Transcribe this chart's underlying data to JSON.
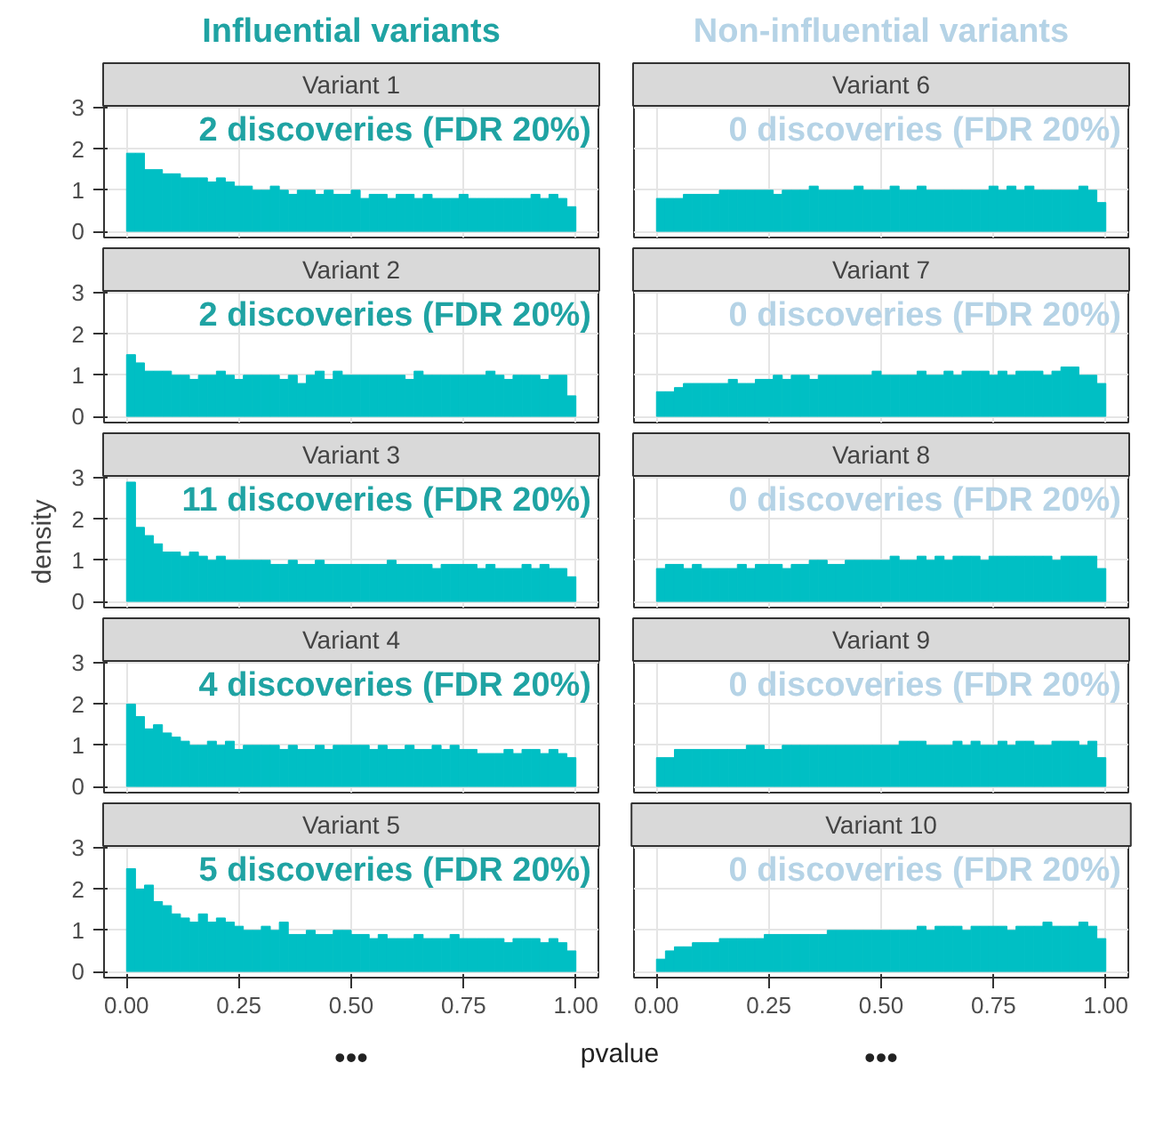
{
  "chart_data": [
    {
      "type": "histogram",
      "subtitle": "Influential variants",
      "title": "Variant 1",
      "annotations": [
        "2 discoveries (FDR 20%)"
      ],
      "color": "#00bfc4",
      "bins": [
        0,
        0.02,
        0.04,
        0.06,
        0.08,
        0.1,
        0.12,
        0.14,
        0.16,
        0.18,
        0.2,
        0.22,
        0.24,
        0.26,
        0.28,
        0.3,
        0.32,
        0.34,
        0.36,
        0.38,
        0.4,
        0.42,
        0.44,
        0.46,
        0.48,
        0.5,
        0.52,
        0.54,
        0.56,
        0.58,
        0.6,
        0.62,
        0.64,
        0.66,
        0.68,
        0.7,
        0.72,
        0.74,
        0.76,
        0.78,
        0.8,
        0.82,
        0.84,
        0.86,
        0.88,
        0.9,
        0.92,
        0.94,
        0.96,
        0.98,
        1
      ],
      "values": [
        1.9,
        1.9,
        1.5,
        1.5,
        1.4,
        1.4,
        1.3,
        1.3,
        1.3,
        1.2,
        1.3,
        1.2,
        1.1,
        1.1,
        1.0,
        1.0,
        1.1,
        1.0,
        0.9,
        1.0,
        1.0,
        0.9,
        1.0,
        0.9,
        0.9,
        1.0,
        0.8,
        0.9,
        0.9,
        0.8,
        0.9,
        0.9,
        0.8,
        0.9,
        0.8,
        0.8,
        0.8,
        0.9,
        0.8,
        0.8,
        0.8,
        0.8,
        0.8,
        0.8,
        0.8,
        0.9,
        0.8,
        0.9,
        0.8,
        0.6
      ],
      "xlim": [
        -0.05,
        1.05
      ],
      "ylim": [
        -0.15,
        3.05
      ],
      "xticks": [
        0,
        0.25,
        0.5,
        0.75,
        1
      ],
      "yticks": [
        0,
        1,
        2,
        3
      ],
      "grid": true,
      "tick_labels": "y"
    },
    {
      "type": "histogram",
      "subtitle": "Non-influential variants",
      "title": "Variant 6",
      "annotations": [
        "0 discoveries (FDR 20%)"
      ],
      "color": "#00bfc4",
      "bins": [
        0,
        0.02,
        0.04,
        0.06,
        0.08,
        0.1,
        0.12,
        0.14,
        0.16,
        0.18,
        0.2,
        0.22,
        0.24,
        0.26,
        0.28,
        0.3,
        0.32,
        0.34,
        0.36,
        0.38,
        0.4,
        0.42,
        0.44,
        0.46,
        0.48,
        0.5,
        0.52,
        0.54,
        0.56,
        0.58,
        0.6,
        0.62,
        0.64,
        0.66,
        0.68,
        0.7,
        0.72,
        0.74,
        0.76,
        0.78,
        0.8,
        0.82,
        0.84,
        0.86,
        0.88,
        0.9,
        0.92,
        0.94,
        0.96,
        0.98,
        1
      ],
      "values": [
        0.8,
        0.8,
        0.8,
        0.9,
        0.9,
        0.9,
        0.9,
        1.0,
        1.0,
        1.0,
        1.0,
        1.0,
        1.0,
        0.9,
        1.0,
        1.0,
        1.0,
        1.1,
        1.0,
        1.0,
        1.0,
        1.0,
        1.1,
        1.0,
        1.0,
        1.0,
        1.1,
        1.0,
        1.0,
        1.1,
        1.0,
        1.0,
        1.0,
        1.0,
        1.0,
        1.0,
        1.0,
        1.1,
        1.0,
        1.1,
        1.0,
        1.1,
        1.0,
        1.0,
        1.0,
        1.0,
        1.0,
        1.1,
        1.0,
        0.7
      ],
      "xlim": [
        -0.05,
        1.05
      ],
      "ylim": [
        -0.15,
        3.05
      ],
      "xticks": [
        0,
        0.25,
        0.5,
        0.75,
        1
      ],
      "yticks": [
        0,
        1,
        2,
        3
      ],
      "grid": true,
      "tick_labels": false
    },
    {
      "type": "histogram",
      "title": "Variant 2",
      "annotations": [
        "2 discoveries (FDR 20%)"
      ],
      "color": "#00bfc4",
      "bins": [
        0,
        0.02,
        0.04,
        0.06,
        0.08,
        0.1,
        0.12,
        0.14,
        0.16,
        0.18,
        0.2,
        0.22,
        0.24,
        0.26,
        0.28,
        0.3,
        0.32,
        0.34,
        0.36,
        0.38,
        0.4,
        0.42,
        0.44,
        0.46,
        0.48,
        0.5,
        0.52,
        0.54,
        0.56,
        0.58,
        0.6,
        0.62,
        0.64,
        0.66,
        0.68,
        0.7,
        0.72,
        0.74,
        0.76,
        0.78,
        0.8,
        0.82,
        0.84,
        0.86,
        0.88,
        0.9,
        0.92,
        0.94,
        0.96,
        0.98,
        1
      ],
      "values": [
        1.5,
        1.3,
        1.1,
        1.1,
        1.1,
        1.0,
        1.0,
        0.9,
        1.0,
        1.0,
        1.1,
        1.0,
        0.9,
        1.0,
        1.0,
        1.0,
        1.0,
        0.9,
        1.0,
        0.8,
        1.0,
        1.1,
        0.9,
        1.1,
        1.0,
        1.0,
        1.0,
        1.0,
        1.0,
        1.0,
        1.0,
        0.9,
        1.1,
        1.0,
        1.0,
        1.0,
        1.0,
        1.0,
        1.0,
        1.0,
        1.1,
        1.0,
        0.9,
        1.0,
        1.0,
        1.0,
        0.9,
        1.0,
        1.0,
        0.5
      ],
      "xlim": [
        -0.05,
        1.05
      ],
      "ylim": [
        -0.15,
        3.05
      ],
      "xticks": [
        0,
        0.25,
        0.5,
        0.75,
        1
      ],
      "yticks": [
        0,
        1,
        2,
        3
      ],
      "grid": true,
      "tick_labels": "y"
    },
    {
      "type": "histogram",
      "title": "Variant 7",
      "annotations": [
        "0 discoveries (FDR 20%)"
      ],
      "color": "#00bfc4",
      "bins": [
        0,
        0.02,
        0.04,
        0.06,
        0.08,
        0.1,
        0.12,
        0.14,
        0.16,
        0.18,
        0.2,
        0.22,
        0.24,
        0.26,
        0.28,
        0.3,
        0.32,
        0.34,
        0.36,
        0.38,
        0.4,
        0.42,
        0.44,
        0.46,
        0.48,
        0.5,
        0.52,
        0.54,
        0.56,
        0.58,
        0.6,
        0.62,
        0.64,
        0.66,
        0.68,
        0.7,
        0.72,
        0.74,
        0.76,
        0.78,
        0.8,
        0.82,
        0.84,
        0.86,
        0.88,
        0.9,
        0.92,
        0.94,
        0.96,
        0.98,
        1
      ],
      "values": [
        0.6,
        0.6,
        0.7,
        0.8,
        0.8,
        0.8,
        0.8,
        0.8,
        0.9,
        0.8,
        0.8,
        0.9,
        0.9,
        1.0,
        0.9,
        1.0,
        1.0,
        0.9,
        1.0,
        1.0,
        1.0,
        1.0,
        1.0,
        1.0,
        1.1,
        1.0,
        1.0,
        1.0,
        1.0,
        1.1,
        1.0,
        1.0,
        1.1,
        1.0,
        1.1,
        1.1,
        1.1,
        1.0,
        1.1,
        1.0,
        1.1,
        1.1,
        1.1,
        1.0,
        1.1,
        1.2,
        1.2,
        1.0,
        1.0,
        0.8
      ],
      "xlim": [
        -0.05,
        1.05
      ],
      "ylim": [
        -0.15,
        3.05
      ],
      "xticks": [
        0,
        0.25,
        0.5,
        0.75,
        1
      ],
      "yticks": [
        0,
        1,
        2,
        3
      ],
      "grid": true,
      "tick_labels": false
    },
    {
      "type": "histogram",
      "title": "Variant 3",
      "ylabel": "density",
      "annotations": [
        "11 discoveries (FDR 20%)"
      ],
      "color": "#00bfc4",
      "bins": [
        0,
        0.02,
        0.04,
        0.06,
        0.08,
        0.1,
        0.12,
        0.14,
        0.16,
        0.18,
        0.2,
        0.22,
        0.24,
        0.26,
        0.28,
        0.3,
        0.32,
        0.34,
        0.36,
        0.38,
        0.4,
        0.42,
        0.44,
        0.46,
        0.48,
        0.5,
        0.52,
        0.54,
        0.56,
        0.58,
        0.6,
        0.62,
        0.64,
        0.66,
        0.68,
        0.7,
        0.72,
        0.74,
        0.76,
        0.78,
        0.8,
        0.82,
        0.84,
        0.86,
        0.88,
        0.9,
        0.92,
        0.94,
        0.96,
        0.98,
        1
      ],
      "values": [
        2.9,
        1.8,
        1.6,
        1.4,
        1.2,
        1.2,
        1.1,
        1.2,
        1.1,
        1.0,
        1.1,
        1.0,
        1.0,
        1.0,
        1.0,
        1.0,
        0.9,
        0.9,
        1.0,
        0.9,
        0.9,
        1.0,
        0.9,
        0.9,
        0.9,
        0.9,
        0.9,
        0.9,
        0.9,
        1.0,
        0.9,
        0.9,
        0.9,
        0.9,
        0.8,
        0.9,
        0.9,
        0.9,
        0.9,
        0.8,
        0.9,
        0.8,
        0.8,
        0.8,
        0.9,
        0.8,
        0.9,
        0.8,
        0.8,
        0.6
      ],
      "xlim": [
        -0.05,
        1.05
      ],
      "ylim": [
        -0.15,
        3.05
      ],
      "xticks": [
        0,
        0.25,
        0.5,
        0.75,
        1
      ],
      "yticks": [
        0,
        1,
        2,
        3
      ],
      "grid": true,
      "tick_labels": "y"
    },
    {
      "type": "histogram",
      "title": "Variant 8",
      "annotations": [
        "0 discoveries (FDR 20%)"
      ],
      "color": "#00bfc4",
      "bins": [
        0,
        0.02,
        0.04,
        0.06,
        0.08,
        0.1,
        0.12,
        0.14,
        0.16,
        0.18,
        0.2,
        0.22,
        0.24,
        0.26,
        0.28,
        0.3,
        0.32,
        0.34,
        0.36,
        0.38,
        0.4,
        0.42,
        0.44,
        0.46,
        0.48,
        0.5,
        0.52,
        0.54,
        0.56,
        0.58,
        0.6,
        0.62,
        0.64,
        0.66,
        0.68,
        0.7,
        0.72,
        0.74,
        0.76,
        0.78,
        0.8,
        0.82,
        0.84,
        0.86,
        0.88,
        0.9,
        0.92,
        0.94,
        0.96,
        0.98,
        1
      ],
      "values": [
        0.8,
        0.9,
        0.9,
        0.8,
        0.9,
        0.8,
        0.8,
        0.8,
        0.8,
        0.9,
        0.8,
        0.9,
        0.9,
        0.9,
        0.8,
        0.9,
        0.9,
        1.0,
        1.0,
        0.9,
        0.9,
        1.0,
        1.0,
        1.0,
        1.0,
        1.0,
        1.1,
        1.0,
        1.0,
        1.1,
        1.0,
        1.1,
        1.0,
        1.1,
        1.1,
        1.1,
        1.0,
        1.1,
        1.1,
        1.1,
        1.1,
        1.1,
        1.1,
        1.1,
        1.0,
        1.1,
        1.1,
        1.1,
        1.1,
        0.8
      ],
      "xlim": [
        -0.05,
        1.05
      ],
      "ylim": [
        -0.15,
        3.05
      ],
      "xticks": [
        0,
        0.25,
        0.5,
        0.75,
        1
      ],
      "yticks": [
        0,
        1,
        2,
        3
      ],
      "grid": true,
      "tick_labels": false
    },
    {
      "type": "histogram",
      "title": "Variant 4",
      "annotations": [
        "4 discoveries (FDR 20%)"
      ],
      "color": "#00bfc4",
      "bins": [
        0,
        0.02,
        0.04,
        0.06,
        0.08,
        0.1,
        0.12,
        0.14,
        0.16,
        0.18,
        0.2,
        0.22,
        0.24,
        0.26,
        0.28,
        0.3,
        0.32,
        0.34,
        0.36,
        0.38,
        0.4,
        0.42,
        0.44,
        0.46,
        0.48,
        0.5,
        0.52,
        0.54,
        0.56,
        0.58,
        0.6,
        0.62,
        0.64,
        0.66,
        0.68,
        0.7,
        0.72,
        0.74,
        0.76,
        0.78,
        0.8,
        0.82,
        0.84,
        0.86,
        0.88,
        0.9,
        0.92,
        0.94,
        0.96,
        0.98,
        1
      ],
      "values": [
        2.0,
        1.7,
        1.4,
        1.5,
        1.3,
        1.2,
        1.1,
        1.0,
        1.0,
        1.1,
        1.0,
        1.1,
        0.9,
        1.0,
        1.0,
        1.0,
        1.0,
        0.9,
        1.0,
        0.9,
        0.9,
        1.0,
        0.9,
        1.0,
        1.0,
        1.0,
        1.0,
        0.9,
        1.0,
        0.9,
        0.9,
        1.0,
        0.9,
        0.9,
        1.0,
        0.9,
        1.0,
        0.9,
        0.9,
        0.8,
        0.8,
        0.8,
        0.9,
        0.8,
        0.9,
        0.9,
        0.8,
        0.9,
        0.8,
        0.7
      ],
      "xlim": [
        -0.05,
        1.05
      ],
      "ylim": [
        -0.15,
        3.05
      ],
      "xticks": [
        0,
        0.25,
        0.5,
        0.75,
        1
      ],
      "yticks": [
        0,
        1,
        2,
        3
      ],
      "grid": true,
      "tick_labels": "y"
    },
    {
      "type": "histogram",
      "title": "Variant 9",
      "annotations": [
        "0 discoveries (FDR 20%)"
      ],
      "color": "#00bfc4",
      "bins": [
        0,
        0.02,
        0.04,
        0.06,
        0.08,
        0.1,
        0.12,
        0.14,
        0.16,
        0.18,
        0.2,
        0.22,
        0.24,
        0.26,
        0.28,
        0.3,
        0.32,
        0.34,
        0.36,
        0.38,
        0.4,
        0.42,
        0.44,
        0.46,
        0.48,
        0.5,
        0.52,
        0.54,
        0.56,
        0.58,
        0.6,
        0.62,
        0.64,
        0.66,
        0.68,
        0.7,
        0.72,
        0.74,
        0.76,
        0.78,
        0.8,
        0.82,
        0.84,
        0.86,
        0.88,
        0.9,
        0.92,
        0.94,
        0.96,
        0.98,
        1
      ],
      "values": [
        0.7,
        0.7,
        0.9,
        0.9,
        0.9,
        0.9,
        0.9,
        0.9,
        0.9,
        0.9,
        1.0,
        1.0,
        0.9,
        0.9,
        1.0,
        1.0,
        1.0,
        1.0,
        1.0,
        1.0,
        1.0,
        1.0,
        1.0,
        1.0,
        1.0,
        1.0,
        1.0,
        1.1,
        1.1,
        1.1,
        1.0,
        1.0,
        1.0,
        1.1,
        1.0,
        1.1,
        1.0,
        1.0,
        1.1,
        1.0,
        1.1,
        1.1,
        1.0,
        1.0,
        1.1,
        1.1,
        1.1,
        1.0,
        1.1,
        0.7
      ],
      "xlim": [
        -0.05,
        1.05
      ],
      "ylim": [
        -0.15,
        3.05
      ],
      "xticks": [
        0,
        0.25,
        0.5,
        0.75,
        1
      ],
      "yticks": [
        0,
        1,
        2,
        3
      ],
      "grid": true,
      "tick_labels": false
    },
    {
      "type": "histogram",
      "title": "Variant 5",
      "xlabel": "pvalue",
      "annotations": [
        "5 discoveries (FDR 20%)",
        "•••"
      ],
      "color": "#00bfc4",
      "bins": [
        0,
        0.02,
        0.04,
        0.06,
        0.08,
        0.1,
        0.12,
        0.14,
        0.16,
        0.18,
        0.2,
        0.22,
        0.24,
        0.26,
        0.28,
        0.3,
        0.32,
        0.34,
        0.36,
        0.38,
        0.4,
        0.42,
        0.44,
        0.46,
        0.48,
        0.5,
        0.52,
        0.54,
        0.56,
        0.58,
        0.6,
        0.62,
        0.64,
        0.66,
        0.68,
        0.7,
        0.72,
        0.74,
        0.76,
        0.78,
        0.8,
        0.82,
        0.84,
        0.86,
        0.88,
        0.9,
        0.92,
        0.94,
        0.96,
        0.98,
        1
      ],
      "values": [
        2.5,
        2.0,
        2.1,
        1.7,
        1.6,
        1.4,
        1.3,
        1.2,
        1.4,
        1.2,
        1.3,
        1.2,
        1.1,
        1.0,
        1.0,
        1.1,
        1.0,
        1.2,
        0.9,
        0.9,
        1.0,
        0.9,
        0.9,
        1.0,
        1.0,
        0.9,
        0.9,
        0.8,
        0.9,
        0.8,
        0.8,
        0.8,
        0.9,
        0.8,
        0.8,
        0.8,
        0.9,
        0.8,
        0.8,
        0.8,
        0.8,
        0.8,
        0.7,
        0.8,
        0.8,
        0.8,
        0.7,
        0.8,
        0.7,
        0.5
      ],
      "xlim": [
        -0.05,
        1.05
      ],
      "ylim": [
        -0.15,
        3.05
      ],
      "xticks": [
        {
          "value": 0,
          "label": "0.00"
        },
        {
          "value": 0.25,
          "label": "0.25"
        },
        {
          "value": 0.5,
          "label": "0.50"
        },
        {
          "value": 0.75,
          "label": "0.75"
        },
        {
          "value": 1,
          "label": "1.00"
        }
      ],
      "yticks": [
        0,
        1,
        2,
        3
      ],
      "grid": true
    },
    {
      "type": "histogram",
      "title": "Variant 10",
      "annotations": [
        "0 discoveries (FDR 20%)",
        "•••"
      ],
      "color": "#00bfc4",
      "bins": [
        0,
        0.02,
        0.04,
        0.06,
        0.08,
        0.1,
        0.12,
        0.14,
        0.16,
        0.18,
        0.2,
        0.22,
        0.24,
        0.26,
        0.28,
        0.3,
        0.32,
        0.34,
        0.36,
        0.38,
        0.4,
        0.42,
        0.44,
        0.46,
        0.48,
        0.5,
        0.52,
        0.54,
        0.56,
        0.58,
        0.6,
        0.62,
        0.64,
        0.66,
        0.68,
        0.7,
        0.72,
        0.74,
        0.76,
        0.78,
        0.8,
        0.82,
        0.84,
        0.86,
        0.88,
        0.9,
        0.92,
        0.94,
        0.96,
        0.98,
        1
      ],
      "values": [
        0.3,
        0.5,
        0.6,
        0.6,
        0.7,
        0.7,
        0.7,
        0.8,
        0.8,
        0.8,
        0.8,
        0.8,
        0.9,
        0.9,
        0.9,
        0.9,
        0.9,
        0.9,
        0.9,
        1.0,
        1.0,
        1.0,
        1.0,
        1.0,
        1.0,
        1.0,
        1.0,
        1.0,
        1.0,
        1.1,
        1.0,
        1.1,
        1.1,
        1.1,
        1.0,
        1.1,
        1.1,
        1.1,
        1.1,
        1.0,
        1.1,
        1.1,
        1.1,
        1.2,
        1.1,
        1.1,
        1.1,
        1.2,
        1.1,
        0.8
      ],
      "xlim": [
        -0.05,
        1.05
      ],
      "ylim": [
        -0.15,
        3.05
      ],
      "xticks": [
        {
          "value": 0,
          "label": "0.00"
        },
        {
          "value": 0.25,
          "label": "0.25"
        },
        {
          "value": 0.5,
          "label": "0.50"
        },
        {
          "value": 0.75,
          "label": "0.75"
        },
        {
          "value": 1,
          "label": "1.00"
        }
      ],
      "yticks": [
        0,
        1,
        2,
        3
      ],
      "grid": true,
      "tick_labels": "x"
    }
  ]
}
